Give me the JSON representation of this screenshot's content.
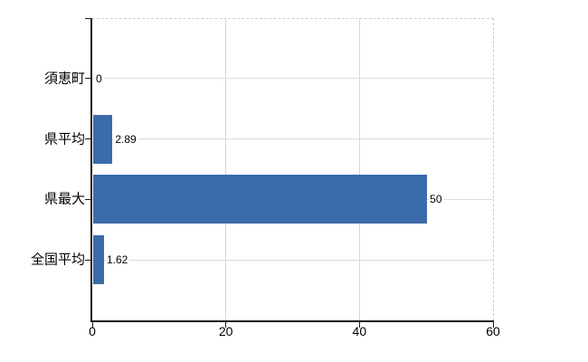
{
  "chart_data": {
    "type": "bar",
    "orientation": "horizontal",
    "title": "",
    "xlabel": "",
    "ylabel": "",
    "categories": [
      "須恵町",
      "県平均",
      "県最大",
      "全国平均"
    ],
    "values": [
      0,
      2.89,
      50,
      1.62
    ],
    "value_labels": [
      "0",
      "2.89",
      "50",
      "1.62"
    ],
    "xlim": [
      0,
      60
    ],
    "xticks": [
      0,
      20,
      40,
      60
    ],
    "xtick_labels": [
      "0",
      "20",
      "40",
      "60"
    ],
    "grid": true,
    "legend": false,
    "colors": {
      "bar": "#3b6ca9",
      "horizontal_gridline": "#d9ded5",
      "vertical_gridline": "#d6d6d6",
      "dashed_border": "#cccccc",
      "axis": "#1a1a1a",
      "text": "#000000",
      "background": "#ffffff"
    }
  }
}
